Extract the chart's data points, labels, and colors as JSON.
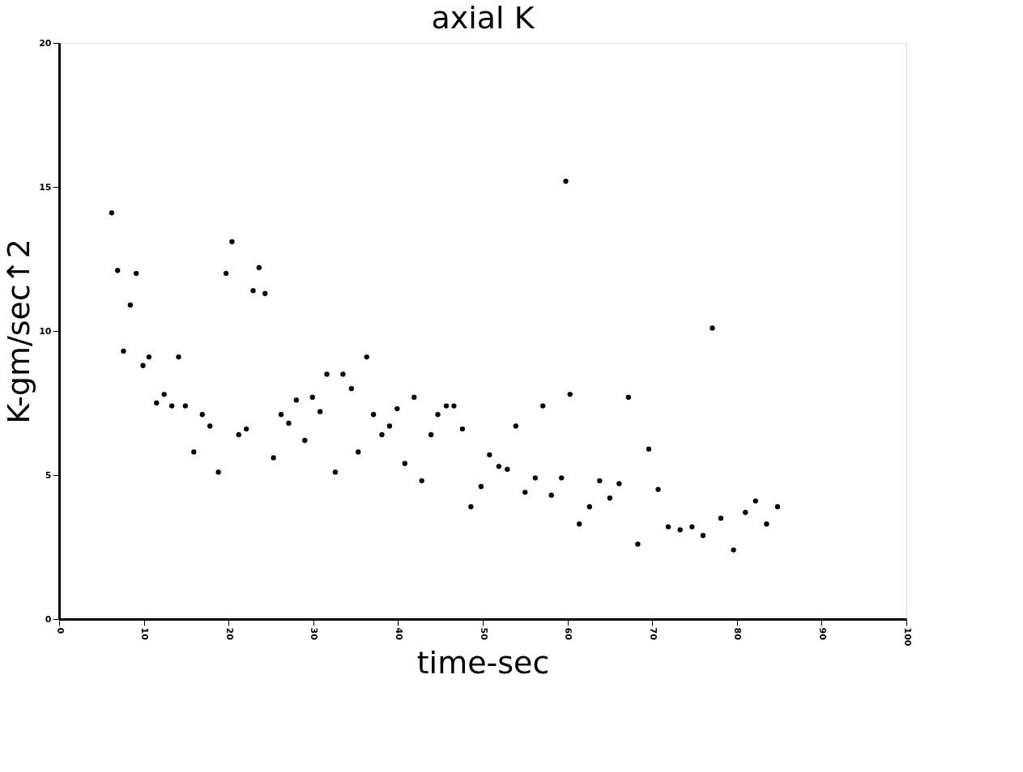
{
  "chart_data": {
    "type": "scatter",
    "title": "axial K",
    "xlabel": "time-sec",
    "ylabel": "K-gm/sec↑2",
    "xlim": [
      0,
      100
    ],
    "xticks": [
      0,
      10,
      20,
      30,
      40,
      50,
      60,
      70,
      80,
      90,
      100
    ],
    "ylim": [
      0,
      20
    ],
    "yticks": [
      0,
      5,
      10,
      15,
      20
    ],
    "grid": false,
    "marker": "circle",
    "series": [
      {
        "color": "#000000",
        "x": [
          6.2,
          6.9,
          7.6,
          8.4,
          9.1,
          9.9,
          10.6,
          11.5,
          12.4,
          13.3,
          14.1,
          14.9,
          15.9,
          16.9,
          17.8,
          18.8,
          19.7,
          20.4,
          21.2,
          22.1,
          22.9,
          23.6,
          24.3,
          25.3,
          26.2,
          27.1,
          28.0,
          29.0,
          29.9,
          30.8,
          31.6,
          32.6,
          33.5,
          34.5,
          35.3,
          36.3,
          37.1,
          38.1,
          39.0,
          39.9,
          40.8,
          41.9,
          42.8,
          43.9,
          44.7,
          45.7,
          46.6,
          47.6,
          48.6,
          49.8,
          50.8,
          51.9,
          52.9,
          53.9,
          55.0,
          56.2,
          57.1,
          58.1,
          59.3,
          59.8,
          60.3,
          61.4,
          62.6,
          63.8,
          65.0,
          66.1,
          67.2,
          68.3,
          69.6,
          70.7,
          71.9,
          73.3,
          74.7,
          76.0,
          77.1,
          78.1,
          79.6,
          81.0,
          82.2,
          83.5,
          84.8
        ],
        "values": [
          14.1,
          12.1,
          9.3,
          10.9,
          12.0,
          8.8,
          9.1,
          7.5,
          7.8,
          7.4,
          9.1,
          7.4,
          5.8,
          7.1,
          6.7,
          5.1,
          12.0,
          13.1,
          6.4,
          6.6,
          11.4,
          12.2,
          11.3,
          5.6,
          7.1,
          6.8,
          7.6,
          6.2,
          7.7,
          7.2,
          8.5,
          5.1,
          8.5,
          8.0,
          5.8,
          9.1,
          7.1,
          6.4,
          6.7,
          7.3,
          5.4,
          7.7,
          4.8,
          6.4,
          7.1,
          7.4,
          7.4,
          6.6,
          3.9,
          4.6,
          5.7,
          5.3,
          5.2,
          6.7,
          4.4,
          4.9,
          7.4,
          4.3,
          4.9,
          15.2,
          7.8,
          3.3,
          3.9,
          4.8,
          4.2,
          4.7,
          7.7,
          2.6,
          5.9,
          4.5,
          3.2,
          3.1,
          3.2,
          2.9,
          10.1,
          3.5,
          2.4,
          3.7,
          4.1,
          3.3,
          3.9
        ]
      }
    ]
  }
}
